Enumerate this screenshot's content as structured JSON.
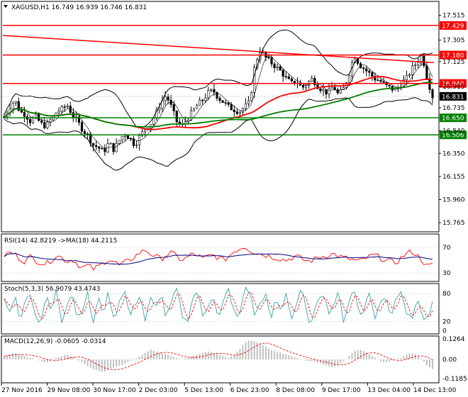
{
  "header": {
    "main": "XAGUSD,H1  16.749 16.939 16.746 16.831",
    "rsi": "RSI(14) 42.8219  ->MA(18) 44.2115",
    "stoch": "Stoch(5,3,3) 56.9079 43.4743",
    "macd": "MACD(12,26,9) -0.0605 -0.0314"
  },
  "colors": {
    "candle": "#000000",
    "red_level": "#ff0000",
    "green_level": "#008000",
    "bands": "#000000",
    "ma_fast": "#008000",
    "ma_red": "#ff0000",
    "rsi_line": "#ff0000",
    "rsi_ma": "#00007f",
    "stoch_main": "#4aa8b5",
    "stoch_signal": "#ff0000",
    "macd_hist": "#c0c0c0",
    "macd_signal": "#ff0000",
    "grid": "#c8c8c8"
  },
  "chart_data": [
    {
      "type": "candlestick",
      "symbol": "XAGUSD",
      "timeframe": "H1",
      "last": {
        "open": 16.749,
        "high": 16.939,
        "low": 16.746,
        "close": 16.831
      },
      "ylim": [
        15.7,
        17.62
      ],
      "y_ticks": [
        "17.515",
        "17.305",
        "17.125",
        "16.915",
        "16.735",
        "16.540",
        "16.350",
        "16.155",
        "15.960",
        "15.765"
      ],
      "x_ticks": [
        "27 Nov 2016",
        "29 Nov 08:00",
        "30 Nov 17:00",
        "2 Dec 03:00",
        "5 Dec 13:00",
        "6 Dec 23:00",
        "8 Dec 08:00",
        "9 Dec 17:00",
        "13 Dec 04:00",
        "14 Dec 13:00"
      ],
      "horizontal_levels": [
        {
          "value": 17.429,
          "label": "17.429",
          "color": "red"
        },
        {
          "value": 17.18,
          "label": "17.180",
          "color": "red"
        },
        {
          "value": 16.94,
          "label": "16.940",
          "color": "red"
        },
        {
          "value": 16.65,
          "label": "16.650",
          "color": "green"
        },
        {
          "value": 16.506,
          "label": "16.506",
          "color": "green"
        }
      ],
      "price_label": "16.831",
      "trendline": {
        "from": [
          0,
          17.345
        ],
        "to": [
          1,
          17.115
        ]
      },
      "close_path": [
        16.66,
        16.74,
        16.8,
        16.7,
        16.68,
        16.62,
        16.66,
        16.6,
        16.58,
        16.64,
        16.7,
        16.72,
        16.76,
        16.68,
        16.62,
        16.55,
        16.5,
        16.42,
        16.4,
        16.36,
        16.44,
        16.38,
        16.46,
        16.52,
        16.48,
        16.42,
        16.5,
        16.56,
        16.6,
        16.68,
        16.78,
        16.84,
        16.74,
        16.62,
        16.58,
        16.64,
        16.7,
        16.76,
        16.8,
        16.86,
        16.88,
        16.82,
        16.78,
        16.74,
        16.72,
        16.7,
        16.74,
        16.78,
        17.1,
        17.22,
        17.16,
        17.12,
        17.08,
        17.04,
        16.98,
        16.94,
        16.96,
        16.9,
        16.94,
        16.98,
        16.92,
        16.88,
        16.86,
        16.92,
        16.84,
        16.9,
        17.02,
        17.18,
        17.1,
        17.06,
        17.02,
        16.98,
        16.96,
        16.92,
        16.9,
        16.88,
        16.94,
        16.98,
        17.06,
        17.12,
        17.18,
        16.98,
        16.83
      ]
    },
    {
      "type": "line",
      "name": "RSI(14)",
      "ylim": [
        18,
        90
      ],
      "y_ticks": [
        "70",
        "30"
      ],
      "values": [
        58,
        62,
        60,
        52,
        48,
        56,
        50,
        46,
        44,
        50,
        58,
        54,
        48,
        52,
        44,
        38,
        42,
        36,
        40,
        46,
        52,
        48,
        42,
        46,
        50,
        56,
        62,
        66,
        60,
        56,
        52,
        58,
        62,
        56,
        50,
        54,
        60,
        58,
        52,
        56,
        58,
        54,
        50,
        56,
        64,
        68,
        72,
        66,
        62,
        60,
        58,
        56,
        54,
        52,
        50,
        54,
        56,
        52,
        48,
        50,
        54,
        56,
        58,
        60,
        56,
        54,
        52,
        50,
        48,
        52,
        56,
        58,
        54,
        50,
        48,
        46,
        54,
        60,
        64,
        58,
        50,
        40,
        43
      ]
    },
    {
      "type": "line",
      "name": "Stoch(5,3,3)",
      "ylim": [
        -5,
        100
      ],
      "y_ticks": [
        "80",
        "20",
        "0"
      ],
      "main": [
        70,
        35,
        80,
        25,
        60,
        85,
        30,
        20,
        75,
        40,
        90,
        20,
        60,
        85,
        25,
        50,
        80,
        15,
        70,
        40,
        85,
        20,
        65,
        90,
        30,
        55,
        80,
        20,
        70,
        45,
        85,
        25,
        60,
        90,
        35,
        15,
        70,
        85,
        30,
        55,
        80,
        20,
        65,
        90,
        40,
        25,
        95,
        85,
        30,
        60,
        80,
        20,
        70,
        40,
        85,
        25,
        60,
        90,
        30,
        15,
        70,
        85,
        40,
        55,
        80,
        20,
        65,
        90,
        35,
        50,
        85,
        25,
        60,
        80,
        30,
        70,
        92,
        40,
        20,
        75,
        30,
        22,
        57
      ]
    },
    {
      "type": "bar",
      "name": "MACD(12,26,9)",
      "ylim": [
        -0.14,
        0.14
      ],
      "y_ticks": [
        "0.1264",
        "0.00",
        "-0.1185"
      ],
      "values": [
        0.02,
        0.03,
        0.04,
        0.03,
        0.02,
        0.01,
        0.0,
        -0.01,
        -0.02,
        -0.01,
        0.01,
        0.02,
        0.03,
        0.02,
        0.0,
        -0.02,
        -0.04,
        -0.06,
        -0.07,
        -0.08,
        -0.06,
        -0.05,
        -0.04,
        -0.03,
        -0.01,
        0.0,
        0.02,
        0.04,
        0.06,
        0.05,
        0.04,
        0.03,
        0.02,
        0.01,
        0.0,
        0.01,
        0.02,
        0.03,
        0.04,
        0.05,
        0.04,
        0.03,
        0.02,
        0.01,
        0.03,
        0.06,
        0.1,
        0.12,
        0.11,
        0.1,
        0.08,
        0.06,
        0.05,
        0.04,
        0.03,
        0.02,
        0.01,
        0.0,
        -0.01,
        -0.01,
        -0.02,
        -0.03,
        -0.04,
        -0.05,
        -0.03,
        -0.01,
        0.02,
        0.05,
        0.06,
        0.05,
        0.03,
        0.01,
        -0.01,
        -0.02,
        -0.01,
        0.0,
        0.01,
        0.03,
        0.04,
        0.03,
        0.0,
        -0.04,
        -0.06
      ]
    }
  ]
}
